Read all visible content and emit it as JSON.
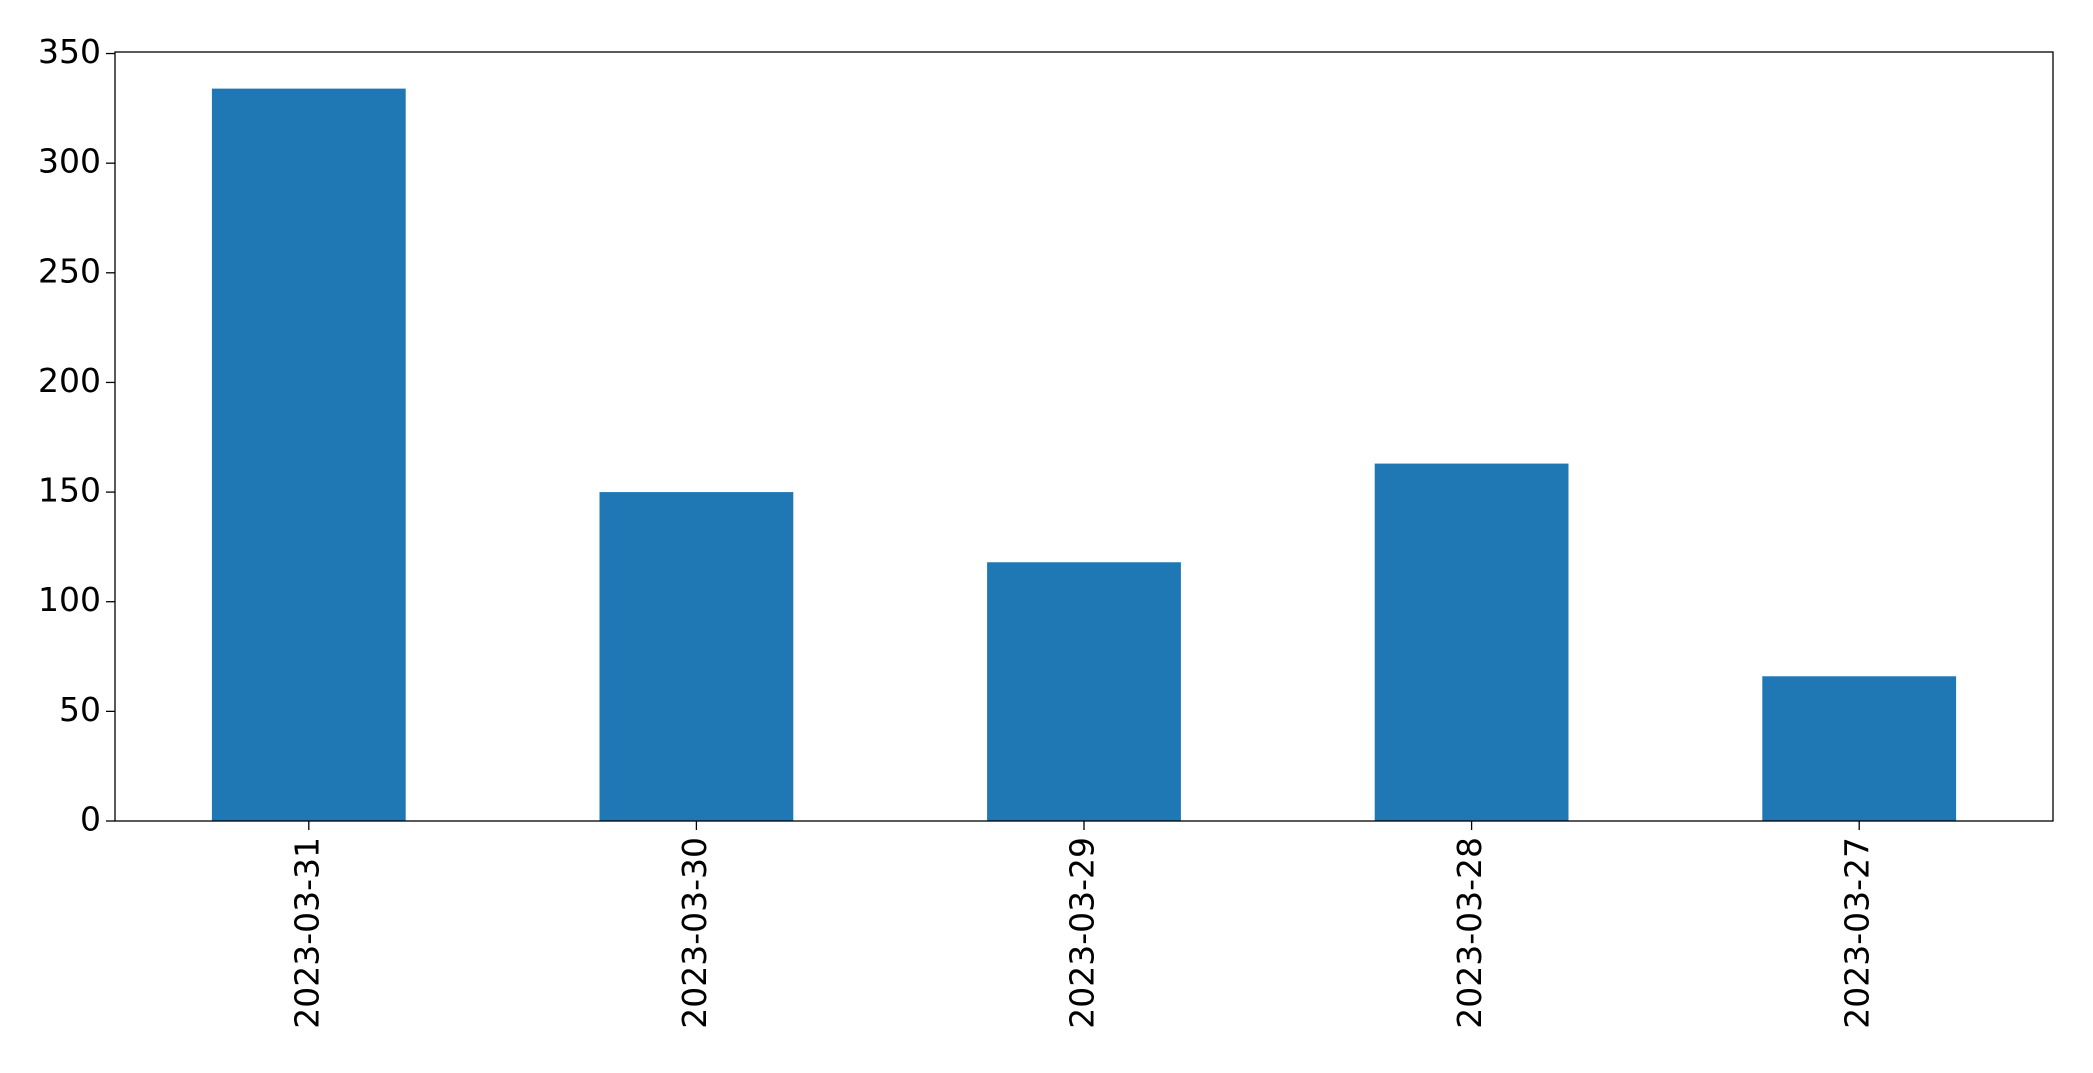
{
  "chart_data": {
    "type": "bar",
    "categories": [
      "2023-03-31",
      "2023-03-30",
      "2023-03-29",
      "2023-03-28",
      "2023-03-27"
    ],
    "values": [
      334,
      150,
      118,
      163,
      66
    ],
    "color": "#1f77b4",
    "ylim": [
      0,
      350.7
    ],
    "yticks": [
      0,
      50,
      100,
      150,
      200,
      250,
      300,
      350
    ],
    "grid": false
  }
}
